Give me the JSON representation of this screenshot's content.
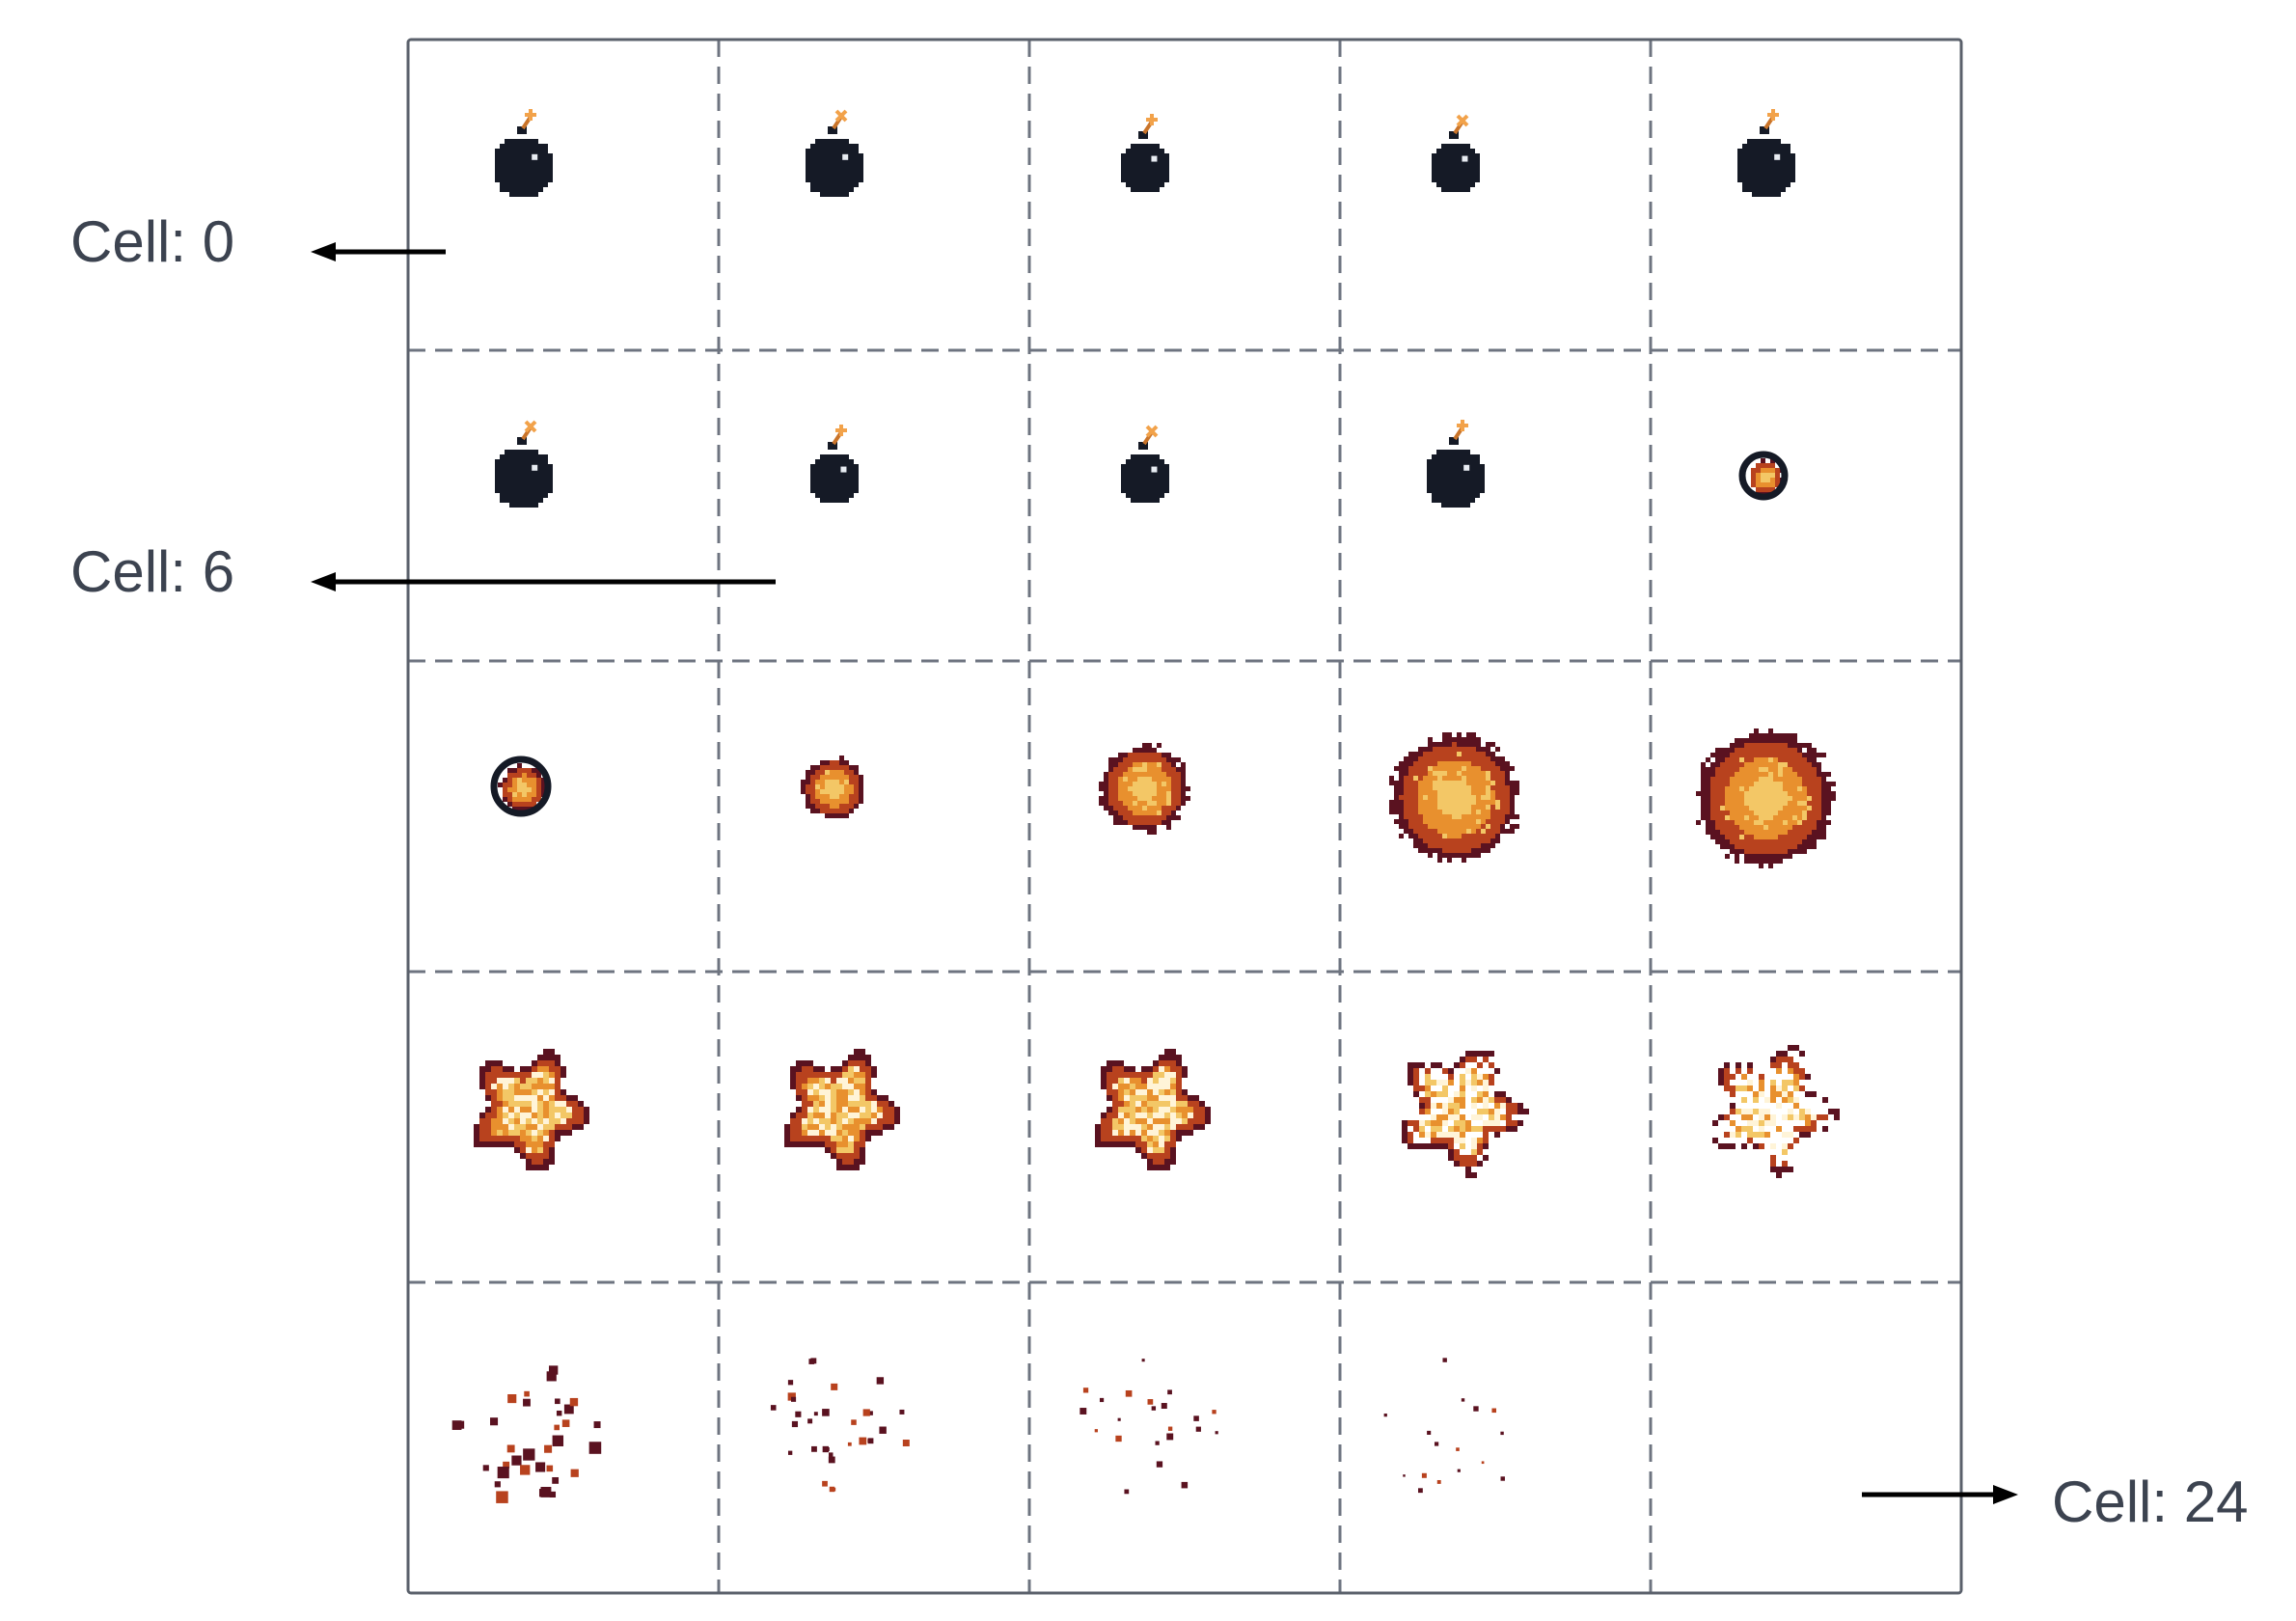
{
  "title": "",
  "grid": {
    "rows": 5,
    "cols": 5,
    "cell_count": 25
  },
  "annotations": [
    {
      "id": "cell-0",
      "label": "Cell: 0",
      "cell": 0
    },
    {
      "id": "cell-6",
      "label": "Cell: 6",
      "cell": 6
    },
    {
      "id": "cell-24",
      "label": "Cell: 24",
      "cell": 24
    }
  ],
  "frames": [
    {
      "index": 0,
      "kind": "bomb"
    },
    {
      "index": 1,
      "kind": "bomb"
    },
    {
      "index": 2,
      "kind": "bomb"
    },
    {
      "index": 3,
      "kind": "bomb"
    },
    {
      "index": 4,
      "kind": "bomb"
    },
    {
      "index": 5,
      "kind": "bomb"
    },
    {
      "index": 6,
      "kind": "bomb"
    },
    {
      "index": 7,
      "kind": "bomb"
    },
    {
      "index": 8,
      "kind": "bomb"
    },
    {
      "index": 9,
      "kind": "igniting-bomb"
    },
    {
      "index": 10,
      "kind": "igniting-bomb"
    },
    {
      "index": 11,
      "kind": "fireball"
    },
    {
      "index": 12,
      "kind": "fireball"
    },
    {
      "index": 13,
      "kind": "fireball"
    },
    {
      "index": 14,
      "kind": "fireball"
    },
    {
      "index": 15,
      "kind": "explosion"
    },
    {
      "index": 16,
      "kind": "explosion"
    },
    {
      "index": 17,
      "kind": "explosion"
    },
    {
      "index": 18,
      "kind": "explosion-fragmenting"
    },
    {
      "index": 19,
      "kind": "explosion-fragmenting"
    },
    {
      "index": 20,
      "kind": "debris"
    },
    {
      "index": 21,
      "kind": "debris"
    },
    {
      "index": 22,
      "kind": "debris"
    },
    {
      "index": 23,
      "kind": "debris"
    },
    {
      "index": 24,
      "kind": "empty"
    }
  ],
  "colors": {
    "grid_border": "#5a606b",
    "grid_dash": "#6e7480",
    "bomb_body": "#151a26",
    "bomb_highlight": "#e8ecf2",
    "fuse": "#c9742a",
    "spark": "#f2a24a",
    "fire_outer": "#5a1220",
    "fire_mid": "#b8421e",
    "fire_inner": "#e8902e",
    "fire_core": "#f3c766",
    "fire_white": "#fff4d8",
    "arrow": "#000000",
    "label_text": "#3c4350"
  }
}
